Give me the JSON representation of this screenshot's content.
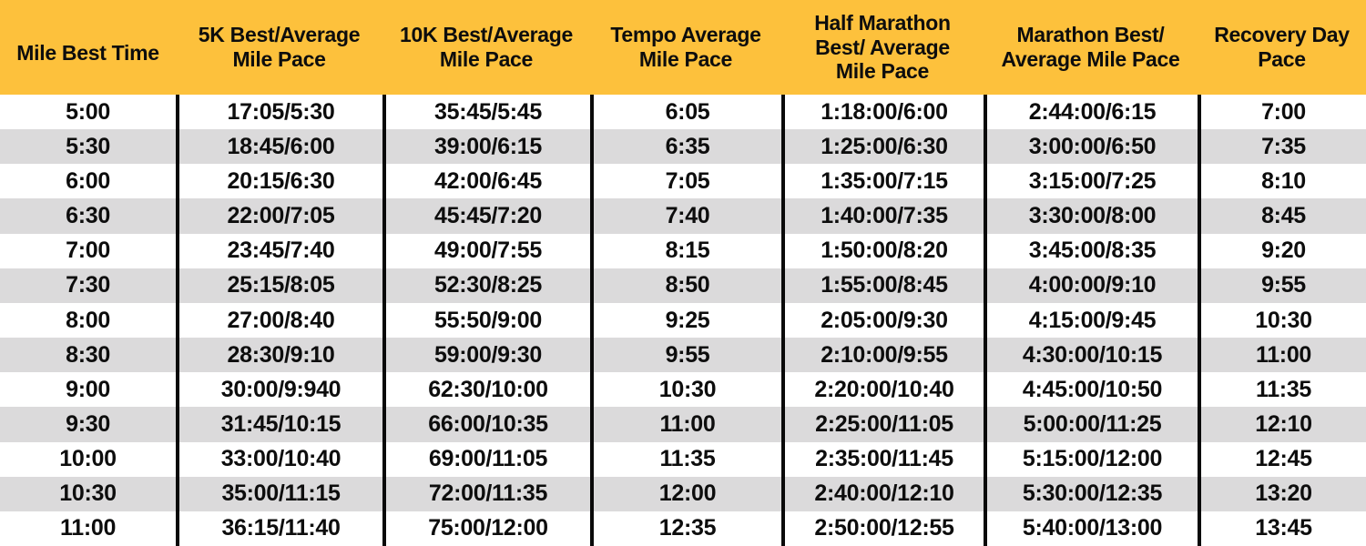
{
  "colors": {
    "header_bg": "#FDC13C",
    "alt_row_bg": "#DBDADB",
    "row_bg": "#FFFFFF",
    "text": "#0D0D0D",
    "divider": "#0A0A0A"
  },
  "header": {
    "labels": [
      "Mile Best Time",
      "5K Best/Average\nMile Pace",
      "10K Best/Average\nMile Pace",
      "Tempo Average\nMile Pace",
      "Half Marathon\nBest/ Average\nMile Pace",
      "Marathon Best/\nAverage Mile Pace",
      "Recovery Day\nPace"
    ]
  },
  "chart_data": {
    "type": "table",
    "columns": [
      "Mile Best Time",
      "5K Best/Average Mile Pace",
      "10K Best/Average Mile Pace",
      "Tempo Average Mile Pace",
      "Half Marathon Best/ Average Mile Pace",
      "Marathon Best/ Average Mile Pace",
      "Recovery Day Pace"
    ],
    "rows": [
      [
        "5:00",
        "17:05/5:30",
        "35:45/5:45",
        "6:05",
        "1:18:00/6:00",
        "2:44:00/6:15",
        "7:00"
      ],
      [
        "5:30",
        "18:45/6:00",
        "39:00/6:15",
        "6:35",
        "1:25:00/6:30",
        "3:00:00/6:50",
        "7:35"
      ],
      [
        "6:00",
        "20:15/6:30",
        "42:00/6:45",
        "7:05",
        "1:35:00/7:15",
        "3:15:00/7:25",
        "8:10"
      ],
      [
        "6:30",
        "22:00/7:05",
        "45:45/7:20",
        "7:40",
        "1:40:00/7:35",
        "3:30:00/8:00",
        "8:45"
      ],
      [
        "7:00",
        "23:45/7:40",
        "49:00/7:55",
        "8:15",
        "1:50:00/8:20",
        "3:45:00/8:35",
        "9:20"
      ],
      [
        "7:30",
        "25:15/8:05",
        "52:30/8:25",
        "8:50",
        "1:55:00/8:45",
        "4:00:00/9:10",
        "9:55"
      ],
      [
        "8:00",
        "27:00/8:40",
        "55:50/9:00",
        "9:25",
        "2:05:00/9:30",
        "4:15:00/9:45",
        "10:30"
      ],
      [
        "8:30",
        "28:30/9:10",
        "59:00/9:30",
        "9:55",
        "2:10:00/9:55",
        "4:30:00/10:15",
        "11:00"
      ],
      [
        "9:00",
        "30:00/9:940",
        "62:30/10:00",
        "10:30",
        "2:20:00/10:40",
        "4:45:00/10:50",
        "11:35"
      ],
      [
        "9:30",
        "31:45/10:15",
        "66:00/10:35",
        "11:00",
        "2:25:00/11:05",
        "5:00:00/11:25",
        "12:10"
      ],
      [
        "10:00",
        "33:00/10:40",
        "69:00/11:05",
        "11:35",
        "2:35:00/11:45",
        "5:15:00/12:00",
        "12:45"
      ],
      [
        "10:30",
        "35:00/11:15",
        "72:00/11:35",
        "12:00",
        "2:40:00/12:10",
        "5:30:00/12:35",
        "13:20"
      ],
      [
        "11:00",
        "36:15/11:40",
        "75:00/12:00",
        "12:35",
        "2:50:00/12:55",
        "5:40:00/13:00",
        "13:45"
      ]
    ]
  }
}
